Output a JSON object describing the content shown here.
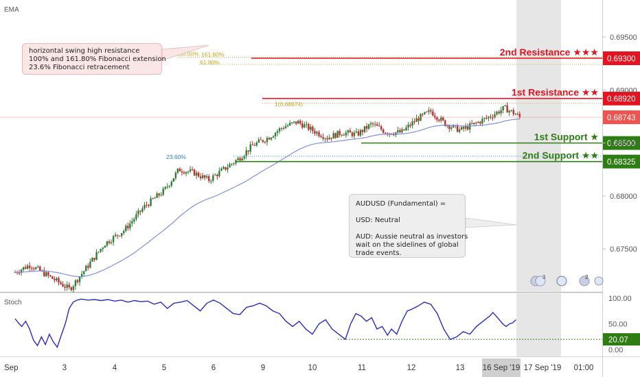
{
  "panels": {
    "main_label": "EMA",
    "stoch_label": "Stoch"
  },
  "annotations": {
    "left_note": [
      "horizontal swing high resistance",
      "100% and 161.80% Fibonacci extension",
      "23.6% Fibonacci retracement"
    ],
    "right_note": {
      "heading": "AUDUSD (Fundamental) =",
      "usd": "USD: Neutral",
      "aud": [
        "AUD: Aussie neutral as investors",
        "wait on the sidelines of global",
        "trade events."
      ]
    }
  },
  "colors": {
    "resistance": "#e5121f",
    "support": "#2e7d12",
    "current": "#ef5350",
    "up_candle": "#2e7d32",
    "down_candle": "#c62828",
    "ema": "#7b8fe6",
    "stoch": "#2929c8",
    "fib": "#c7a21b",
    "fib_retrace": "#2a7fc1",
    "highlight": "#e3e3e3"
  },
  "calendar_badges": [
    "3",
    "2"
  ],
  "chart_data": [
    {
      "type": "candlestick",
      "symbol": "AUDUSD",
      "x_labels": [
        "Sep",
        "3",
        "4",
        "5",
        "6",
        "9",
        "10",
        "11",
        "12",
        "13",
        "16 Sep '19",
        "17 Sep '19",
        "01:00"
      ],
      "y_ticks": [
        0.675,
        0.68,
        0.685,
        0.69,
        0.695
      ],
      "y_tick_labels": [
        "0.67500",
        "0.68000",
        "0.68500",
        "0.69000",
        "0.69500"
      ],
      "ylim": [
        0.671,
        0.6985
      ],
      "levels": [
        {
          "name": "2nd Resistance ★★★",
          "price": 0.693,
          "label": "0.69300",
          "kind": "resistance"
        },
        {
          "name": "1st Resistance ★★",
          "price": 0.6892,
          "label": "0.68920",
          "kind": "resistance"
        },
        {
          "name": "1st Support ★",
          "price": 0.685,
          "label": "0.68500",
          "kind": "support"
        },
        {
          "name": "2nd Support ★★",
          "price": 0.68325,
          "label": "0.68325",
          "kind": "support"
        }
      ],
      "current_price": {
        "price": 0.68743,
        "label": "0.68743"
      },
      "fibonacci": [
        {
          "label": "100.00%",
          "price": 0.6931
        },
        {
          "label": "161.80%",
          "price": 0.6931
        },
        {
          "label": "61.80%",
          "price": 0.693
        },
        {
          "label": "1(0.68874)",
          "price": 0.68874
        },
        {
          "label": "23.60%",
          "price": 0.68375
        }
      ]
    },
    {
      "type": "line",
      "name": "Stoch",
      "y_ticks": [
        0,
        50,
        100
      ],
      "y_tick_labels": [
        "0.00",
        "50.00",
        "100.00"
      ],
      "ylim": [
        -5,
        105
      ],
      "marker": {
        "value": 20.07,
        "label": "20.07"
      },
      "points": [
        [
          0,
          60
        ],
        [
          0.05,
          52
        ],
        [
          0.1,
          45
        ],
        [
          0.16,
          55
        ],
        [
          0.22,
          40
        ],
        [
          0.28,
          18
        ],
        [
          0.34,
          8
        ],
        [
          0.4,
          25
        ],
        [
          0.46,
          10
        ],
        [
          0.52,
          30
        ],
        [
          0.58,
          15
        ],
        [
          0.64,
          5
        ],
        [
          0.7,
          28
        ],
        [
          0.76,
          50
        ],
        [
          0.82,
          80
        ],
        [
          0.88,
          92
        ],
        [
          0.94,
          96
        ],
        [
          1.0,
          98
        ],
        [
          1.1,
          96
        ],
        [
          1.2,
          97
        ],
        [
          1.3,
          95
        ],
        [
          1.4,
          97
        ],
        [
          1.5,
          94
        ],
        [
          1.6,
          96
        ],
        [
          1.7,
          92
        ],
        [
          1.8,
          95
        ],
        [
          1.9,
          93
        ],
        [
          2.0,
          94
        ],
        [
          2.1,
          88
        ],
        [
          2.2,
          92
        ],
        [
          2.3,
          80
        ],
        [
          2.4,
          90
        ],
        [
          2.5,
          92
        ],
        [
          2.6,
          95
        ],
        [
          2.7,
          85
        ],
        [
          2.8,
          75
        ],
        [
          2.9,
          90
        ],
        [
          3.0,
          96
        ],
        [
          3.1,
          90
        ],
        [
          3.2,
          80
        ],
        [
          3.3,
          70
        ],
        [
          3.4,
          68
        ],
        [
          3.5,
          82
        ],
        [
          3.6,
          85
        ],
        [
          3.7,
          90
        ],
        [
          3.8,
          85
        ],
        [
          3.9,
          75
        ],
        [
          4.0,
          70
        ],
        [
          4.1,
          55
        ],
        [
          4.2,
          45
        ],
        [
          4.3,
          55
        ],
        [
          4.4,
          40
        ],
        [
          4.5,
          30
        ],
        [
          4.6,
          50
        ],
        [
          4.7,
          58
        ],
        [
          4.8,
          40
        ],
        [
          4.9,
          30
        ],
        [
          5.0,
          20
        ],
        [
          5.08,
          50
        ],
        [
          5.16,
          70
        ],
        [
          5.24,
          65
        ],
        [
          5.32,
          55
        ],
        [
          5.4,
          62
        ],
        [
          5.48,
          40
        ],
        [
          5.56,
          45
        ],
        [
          5.64,
          28
        ],
        [
          5.7,
          40
        ],
        [
          5.78,
          30
        ],
        [
          5.86,
          55
        ],
        [
          5.94,
          75
        ],
        [
          6.0,
          78
        ],
        [
          6.1,
          84
        ],
        [
          6.2,
          92
        ],
        [
          6.3,
          88
        ],
        [
          6.4,
          70
        ],
        [
          6.5,
          40
        ],
        [
          6.6,
          20
        ],
        [
          6.7,
          25
        ],
        [
          6.8,
          35
        ],
        [
          6.9,
          30
        ],
        [
          7.0,
          45
        ],
        [
          7.1,
          55
        ],
        [
          7.2,
          65
        ],
        [
          7.25,
          72
        ],
        [
          7.3,
          65
        ],
        [
          7.4,
          50
        ],
        [
          7.45,
          45
        ],
        [
          7.5,
          50
        ],
        [
          7.55,
          52
        ],
        [
          7.6,
          58
        ]
      ]
    }
  ]
}
